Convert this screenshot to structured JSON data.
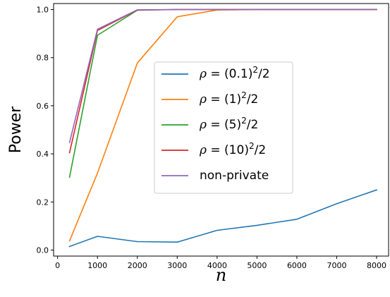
{
  "chart_data": {
    "type": "line",
    "xlabel": "n",
    "ylabel": "Power",
    "xlim": [
      -100,
      8300
    ],
    "ylim": [
      -0.025,
      1.025
    ],
    "xticks": [
      0,
      1000,
      2000,
      3000,
      4000,
      5000,
      6000,
      7000,
      8000
    ],
    "xtick_labels": [
      "0",
      "1000",
      "2000",
      "3000",
      "4000",
      "5000",
      "6000",
      "7000",
      "8000"
    ],
    "yticks": [
      0.0,
      0.2,
      0.4,
      0.6,
      0.8,
      1.0
    ],
    "ytick_labels": [
      "0.0",
      "0.2",
      "0.4",
      "0.6",
      "0.8",
      "1.0"
    ],
    "grid": false,
    "legend_position": "center-right",
    "series": [
      {
        "name": "ρ = (0.1)²/2",
        "label_parts": {
          "rho": "ρ",
          "pre": " = (0.1)",
          "sup": "2",
          "post": "/2"
        },
        "color": "#1f77b4",
        "x": [
          300,
          1000,
          2000,
          3000,
          4000,
          5000,
          6000,
          7000,
          8000
        ],
        "y": [
          0.015,
          0.057,
          0.035,
          0.033,
          0.082,
          0.103,
          0.128,
          0.193,
          0.25
        ]
      },
      {
        "name": "ρ = (1)²/2",
        "label_parts": {
          "rho": "ρ",
          "pre": " = (1)",
          "sup": "2",
          "post": "/2"
        },
        "color": "#ff7f0e",
        "x": [
          300,
          1000,
          2000,
          3000,
          4000,
          5000,
          6000,
          7000,
          8000
        ],
        "y": [
          0.038,
          0.32,
          0.778,
          0.97,
          0.998,
          1.0,
          1.0,
          1.0,
          1.0
        ]
      },
      {
        "name": "ρ = (5)²/2",
        "label_parts": {
          "rho": "ρ",
          "pre": " = (5)",
          "sup": "2",
          "post": "/2"
        },
        "color": "#2ca02c",
        "x": [
          300,
          1000,
          2000,
          3000,
          4000,
          5000,
          6000,
          7000,
          8000
        ],
        "y": [
          0.303,
          0.893,
          0.997,
          1.0,
          1.0,
          1.0,
          1.0,
          1.0,
          1.0
        ]
      },
      {
        "name": "ρ = (10)²/2",
        "label_parts": {
          "rho": "ρ",
          "pre": " = (10)",
          "sup": "2",
          "post": "/2"
        },
        "color": "#d62728",
        "x": [
          300,
          1000,
          2000,
          3000,
          4000,
          5000,
          6000,
          7000,
          8000
        ],
        "y": [
          0.405,
          0.913,
          0.998,
          1.0,
          1.0,
          1.0,
          1.0,
          1.0,
          1.0
        ]
      },
      {
        "name": "non-private",
        "label_parts": {
          "rho": "",
          "pre": "non-private",
          "sup": "",
          "post": ""
        },
        "color": "#9467bd",
        "x": [
          300,
          1000,
          2000,
          3000,
          4000,
          5000,
          6000,
          7000,
          8000
        ],
        "y": [
          0.447,
          0.918,
          0.999,
          1.0,
          1.0,
          1.0,
          1.0,
          1.0,
          1.0
        ]
      }
    ]
  }
}
